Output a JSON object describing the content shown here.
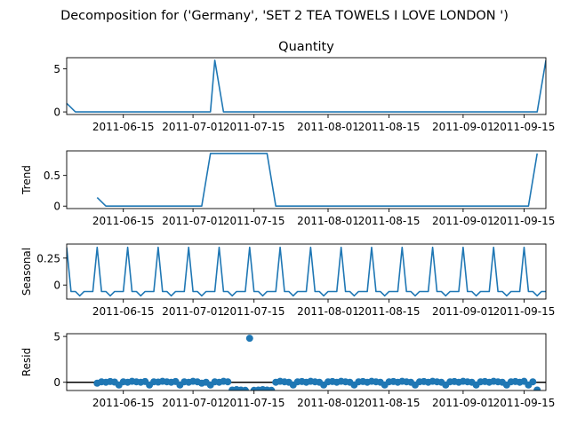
{
  "figure": {
    "title": "Decomposition for ('Germany', 'SET 2 TEA TOWELS I LOVE LONDON ')"
  },
  "chart_data": [
    {
      "type": "line",
      "title": "Quantity",
      "ylabel": "",
      "xlim": [
        "2011-06-02",
        "2011-09-20"
      ],
      "ylim": [
        -0.3,
        6.3
      ],
      "yticks": [
        0,
        5
      ],
      "xticks": [
        "2011-06-15",
        "2011-07-01",
        "2011-07-15",
        "2011-08-01",
        "2011-08-15",
        "2011-09-01",
        "2011-09-15"
      ],
      "color": "#1f77b4",
      "grid": false,
      "x": [
        "2011-06-02",
        "2011-06-04",
        "2011-07-05",
        "2011-07-06",
        "2011-07-08",
        "2011-09-18",
        "2011-09-20"
      ],
      "values": [
        1,
        0,
        0,
        6,
        0,
        0,
        6
      ]
    },
    {
      "type": "line",
      "title": "",
      "ylabel": "Trend",
      "xlim": [
        "2011-06-02",
        "2011-09-20"
      ],
      "ylim": [
        -0.04,
        0.9
      ],
      "yticks": [
        0.0,
        0.5
      ],
      "xticks": [
        "2011-06-15",
        "2011-07-01",
        "2011-07-15",
        "2011-08-01",
        "2011-08-15",
        "2011-09-01",
        "2011-09-15"
      ],
      "color": "#1f77b4",
      "grid": false,
      "x": [
        "2011-06-09",
        "2011-06-11",
        "2011-07-03",
        "2011-07-05",
        "2011-07-18",
        "2011-07-20",
        "2011-09-16",
        "2011-09-18"
      ],
      "values": [
        0.14,
        0,
        0,
        0.857,
        0.857,
        0,
        0,
        0.857
      ]
    },
    {
      "type": "line",
      "title": "",
      "ylabel": "Seasonal",
      "xlim": [
        "2011-06-02",
        "2011-09-20"
      ],
      "ylim": [
        -0.13,
        0.38
      ],
      "yticks": [
        0.0,
        0.25
      ],
      "xticks": [
        "2011-06-15",
        "2011-07-01",
        "2011-07-15",
        "2011-08-01",
        "2011-08-15",
        "2011-09-01",
        "2011-09-15"
      ],
      "color": "#1f77b4",
      "grid": false,
      "period": 7,
      "first_peak": "2011-06-02",
      "pattern": [
        0.35,
        -0.06,
        -0.06,
        -0.1,
        -0.06,
        -0.06,
        -0.06
      ]
    },
    {
      "type": "scatter",
      "title": "",
      "ylabel": "Resid",
      "xlim": [
        "2011-06-02",
        "2011-09-20"
      ],
      "ylim": [
        -0.9,
        5.3
      ],
      "yticks": [
        0,
        5
      ],
      "xticks": [
        "2011-06-15",
        "2011-07-01",
        "2011-07-15",
        "2011-08-01",
        "2011-08-15",
        "2011-09-01",
        "2011-09-15"
      ],
      "color": "#1f77b4",
      "grid": false,
      "zero_line": true,
      "points": [
        [
          "2011-06-09",
          -0.1
        ],
        [
          "2011-06-10",
          0.05
        ],
        [
          "2011-06-11",
          0.0
        ],
        [
          "2011-06-12",
          0.08
        ],
        [
          "2011-06-13",
          0.02
        ],
        [
          "2011-06-14",
          -0.3
        ],
        [
          "2011-06-15",
          0.05
        ],
        [
          "2011-06-16",
          0.0
        ],
        [
          "2011-06-17",
          0.1
        ],
        [
          "2011-06-18",
          0.05
        ],
        [
          "2011-06-19",
          0.0
        ],
        [
          "2011-06-20",
          0.08
        ],
        [
          "2011-06-21",
          -0.3
        ],
        [
          "2011-06-22",
          0.05
        ],
        [
          "2011-06-23",
          0.02
        ],
        [
          "2011-06-24",
          0.1
        ],
        [
          "2011-06-25",
          0.05
        ],
        [
          "2011-06-26",
          0.0
        ],
        [
          "2011-06-27",
          0.08
        ],
        [
          "2011-06-28",
          -0.3
        ],
        [
          "2011-06-29",
          0.05
        ],
        [
          "2011-06-30",
          0.0
        ],
        [
          "2011-07-01",
          0.1
        ],
        [
          "2011-07-02",
          0.05
        ],
        [
          "2011-07-03",
          -0.1
        ],
        [
          "2011-07-04",
          0.0
        ],
        [
          "2011-07-05",
          -0.3
        ],
        [
          "2011-07-06",
          0.05
        ],
        [
          "2011-07-07",
          0.0
        ],
        [
          "2011-07-08",
          0.1
        ],
        [
          "2011-07-09",
          0.05
        ],
        [
          "2011-07-10",
          -0.85
        ],
        [
          "2011-07-11",
          -0.8
        ],
        [
          "2011-07-12",
          -0.85
        ],
        [
          "2011-07-13",
          -0.88
        ],
        [
          "2011-07-14",
          4.8
        ],
        [
          "2011-07-15",
          -0.88
        ],
        [
          "2011-07-16",
          -0.85
        ],
        [
          "2011-07-17",
          -0.8
        ],
        [
          "2011-07-18",
          -0.85
        ],
        [
          "2011-07-19",
          -0.88
        ],
        [
          "2011-07-20",
          0.0
        ],
        [
          "2011-07-21",
          0.1
        ],
        [
          "2011-07-22",
          0.05
        ],
        [
          "2011-07-23",
          0.0
        ],
        [
          "2011-07-24",
          -0.3
        ],
        [
          "2011-07-25",
          0.05
        ],
        [
          "2011-07-26",
          0.08
        ],
        [
          "2011-07-27",
          0.0
        ],
        [
          "2011-07-28",
          0.1
        ],
        [
          "2011-07-29",
          0.05
        ],
        [
          "2011-07-30",
          0.0
        ],
        [
          "2011-07-31",
          -0.3
        ],
        [
          "2011-08-01",
          0.05
        ],
        [
          "2011-08-02",
          0.08
        ],
        [
          "2011-08-03",
          0.0
        ],
        [
          "2011-08-04",
          0.1
        ],
        [
          "2011-08-05",
          0.05
        ],
        [
          "2011-08-06",
          0.0
        ],
        [
          "2011-08-07",
          -0.3
        ],
        [
          "2011-08-08",
          0.05
        ],
        [
          "2011-08-09",
          0.08
        ],
        [
          "2011-08-10",
          0.0
        ],
        [
          "2011-08-11",
          0.1
        ],
        [
          "2011-08-12",
          0.05
        ],
        [
          "2011-08-13",
          0.0
        ],
        [
          "2011-08-14",
          -0.3
        ],
        [
          "2011-08-15",
          0.05
        ],
        [
          "2011-08-16",
          0.08
        ],
        [
          "2011-08-17",
          0.0
        ],
        [
          "2011-08-18",
          0.1
        ],
        [
          "2011-08-19",
          0.05
        ],
        [
          "2011-08-20",
          0.0
        ],
        [
          "2011-08-21",
          -0.3
        ],
        [
          "2011-08-22",
          0.05
        ],
        [
          "2011-08-23",
          0.08
        ],
        [
          "2011-08-24",
          0.0
        ],
        [
          "2011-08-25",
          0.1
        ],
        [
          "2011-08-26",
          0.05
        ],
        [
          "2011-08-27",
          0.0
        ],
        [
          "2011-08-28",
          -0.3
        ],
        [
          "2011-08-29",
          0.05
        ],
        [
          "2011-08-30",
          0.08
        ],
        [
          "2011-08-31",
          0.0
        ],
        [
          "2011-09-01",
          0.1
        ],
        [
          "2011-09-02",
          0.05
        ],
        [
          "2011-09-03",
          0.0
        ],
        [
          "2011-09-04",
          -0.3
        ],
        [
          "2011-09-05",
          0.05
        ],
        [
          "2011-09-06",
          0.08
        ],
        [
          "2011-09-07",
          0.0
        ],
        [
          "2011-09-08",
          0.1
        ],
        [
          "2011-09-09",
          0.05
        ],
        [
          "2011-09-10",
          0.0
        ],
        [
          "2011-09-11",
          -0.3
        ],
        [
          "2011-09-12",
          0.05
        ],
        [
          "2011-09-13",
          0.08
        ],
        [
          "2011-09-14",
          0.0
        ],
        [
          "2011-09-15",
          0.1
        ],
        [
          "2011-09-16",
          -0.3
        ],
        [
          "2011-09-17",
          0.05
        ],
        [
          "2011-09-18",
          -0.85
        ]
      ]
    }
  ]
}
